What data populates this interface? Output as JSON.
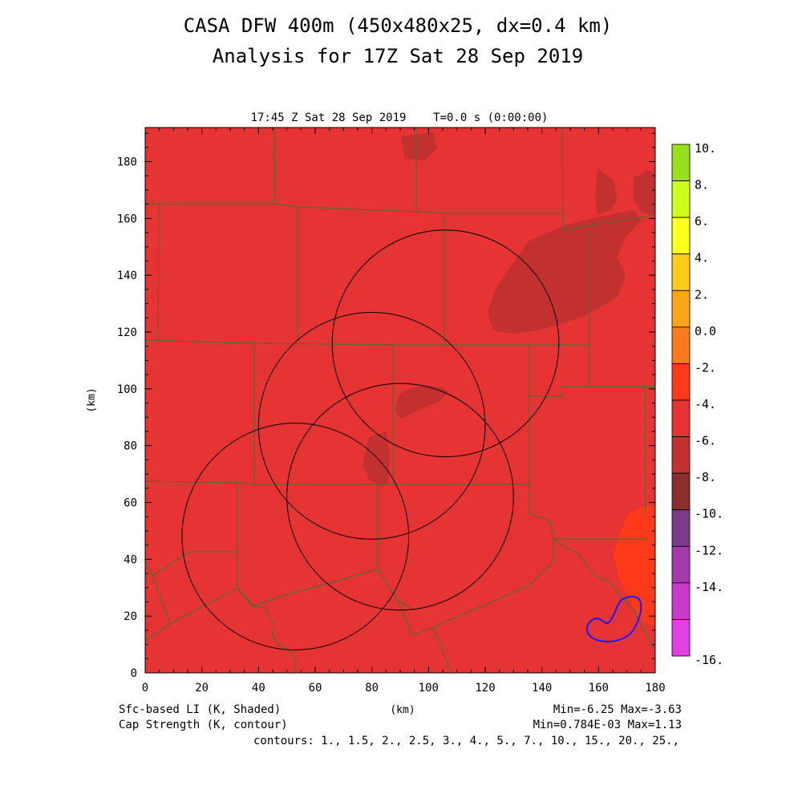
{
  "title_line1": "CASA DFW 400m (450x480x25, dx=0.4 km)",
  "title_line2": "Analysis for 17Z Sat 28 Sep 2019",
  "subtitle": "17:45 Z Sat 28 Sep 2019    T=0.0 s (0:00:00)",
  "x_axis": {
    "label": "(km)",
    "min": 0,
    "max": 180,
    "ticks": [
      "0",
      "20",
      "40",
      "60",
      "80",
      "100",
      "120",
      "140",
      "160",
      "180"
    ]
  },
  "y_axis": {
    "label": "(km)",
    "min": 0,
    "max": 192,
    "ticks": [
      "0",
      "20",
      "40",
      "60",
      "80",
      "100",
      "120",
      "140",
      "160",
      "180"
    ]
  },
  "footer": {
    "shaded_field": "Sfc-based LI (K, Shaded)",
    "contour_field": "Cap Strength (K, contour)",
    "shaded_range": "Min=-6.25 Max=-3.63",
    "contour_range": "Min=0.784E-03 Max=1.13",
    "contour_levels": "contours: 1., 1.5, 2., 2.5, 3., 4., 5., 7., 10., 15., 20., 25.,"
  },
  "colorbar": {
    "labels": [
      "10.",
      "8.",
      "6.",
      "4.",
      "2.",
      "0.0",
      "-2.",
      "-4.",
      "-6.",
      "-8.",
      "-10.",
      "-12.",
      "-14.",
      "-16."
    ],
    "colors": [
      "#99e01a",
      "#ccff1a",
      "#ffff1a",
      "#ffcc1a",
      "#ffa31a",
      "#ff7a1a",
      "#ff3a1a",
      "#e63333",
      "#c23030",
      "#8a2e2e",
      "#7b3a8a",
      "#a43aa8",
      "#cc3acc",
      "#e040e6"
    ]
  },
  "colors": {
    "background_field": "#e63333",
    "darker_region": "#c23030",
    "orange_region": "#ff3a1a",
    "county_lines": "#556b2f",
    "radar_rings": "#000000",
    "cap_contour": "#1a1aff"
  },
  "radar_rings_km": [
    {
      "x": 53,
      "y": 48,
      "r": 40
    },
    {
      "x": 80,
      "y": 87,
      "r": 40
    },
    {
      "x": 90,
      "y": 62,
      "r": 40
    },
    {
      "x": 106,
      "y": 116,
      "r": 40
    }
  ]
}
